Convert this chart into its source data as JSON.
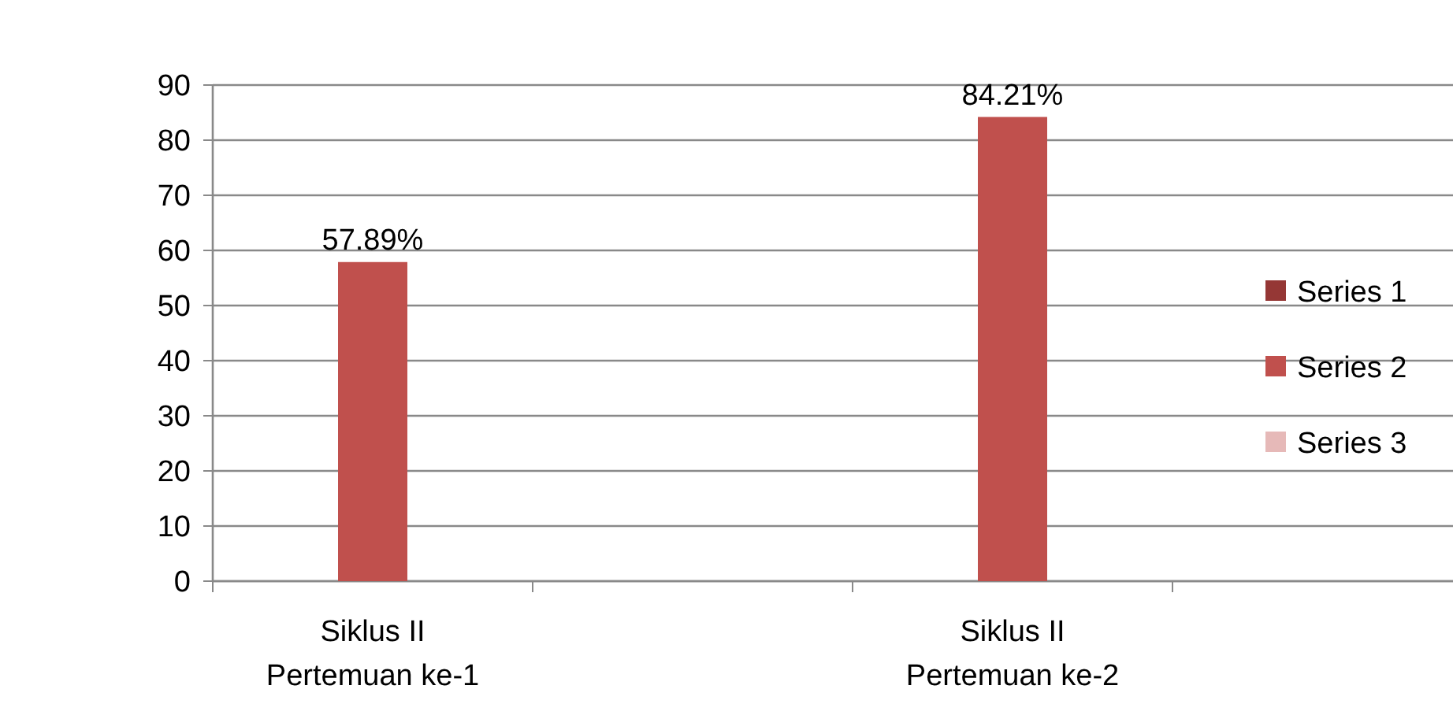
{
  "chart_data": {
    "type": "bar",
    "categories": [
      "Siklus II\nPertemuan ke-1",
      null,
      "Siklus II\nPertemuan ke-2",
      null
    ],
    "series": [
      {
        "name": "Series 1",
        "color": "#953735",
        "values": [
          null,
          null,
          null,
          null
        ]
      },
      {
        "name": "Series 2",
        "color": "#c0504d",
        "values": [
          57.89,
          null,
          84.21,
          null
        ],
        "value_labels": [
          "57.89%",
          null,
          "84.21%",
          null
        ]
      },
      {
        "name": "Series 3",
        "color": "#e6b9b8",
        "values": [
          null,
          null,
          null,
          null
        ]
      }
    ],
    "ylim": [
      0,
      90
    ],
    "yticks": [
      0,
      10,
      20,
      30,
      40,
      50,
      60,
      70,
      80,
      90
    ],
    "grid": "y",
    "legend": "right"
  }
}
